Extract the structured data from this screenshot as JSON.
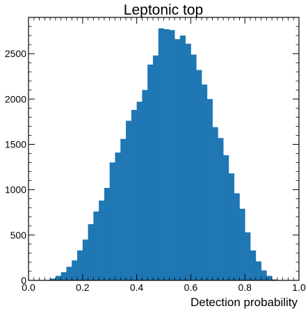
{
  "chart_data": {
    "type": "bar",
    "title": "Leptonic top",
    "xlabel": "Detection probability",
    "ylabel": "",
    "xlim": [
      0.0,
      1.0
    ],
    "ylim": [
      0,
      2900
    ],
    "grid": false,
    "bar_color": "#1f77b4",
    "bin_width": 0.02,
    "x_ticks": [
      0.0,
      0.2,
      0.4,
      0.6,
      0.8,
      1.0
    ],
    "x_tick_labels": [
      "0.0",
      "0.2",
      "0.4",
      "0.6",
      "0.8",
      "1.0"
    ],
    "y_ticks": [
      0,
      500,
      1000,
      1500,
      2000,
      2500
    ],
    "y_tick_labels": [
      "0",
      "500",
      "1000",
      "1500",
      "2000",
      "2500"
    ],
    "bin_edges_start": [
      0.06,
      0.08,
      0.1,
      0.12,
      0.14,
      0.16,
      0.18,
      0.2,
      0.22,
      0.24,
      0.26,
      0.28,
      0.3,
      0.32,
      0.34,
      0.36,
      0.38,
      0.4,
      0.42,
      0.44,
      0.46,
      0.48,
      0.5,
      0.52,
      0.54,
      0.56,
      0.58,
      0.6,
      0.62,
      0.64,
      0.66,
      0.68,
      0.7,
      0.72,
      0.74,
      0.76,
      0.78,
      0.8,
      0.82,
      0.84,
      0.86,
      0.88,
      0.9
    ],
    "values": [
      5,
      20,
      50,
      90,
      150,
      220,
      330,
      450,
      620,
      760,
      880,
      1020,
      1300,
      1410,
      1560,
      1760,
      1880,
      1970,
      2100,
      2380,
      2480,
      2780,
      2770,
      2760,
      2660,
      2700,
      2610,
      2490,
      2320,
      2160,
      2000,
      1690,
      1570,
      1380,
      1180,
      960,
      790,
      530,
      330,
      210,
      110,
      50,
      10
    ]
  }
}
